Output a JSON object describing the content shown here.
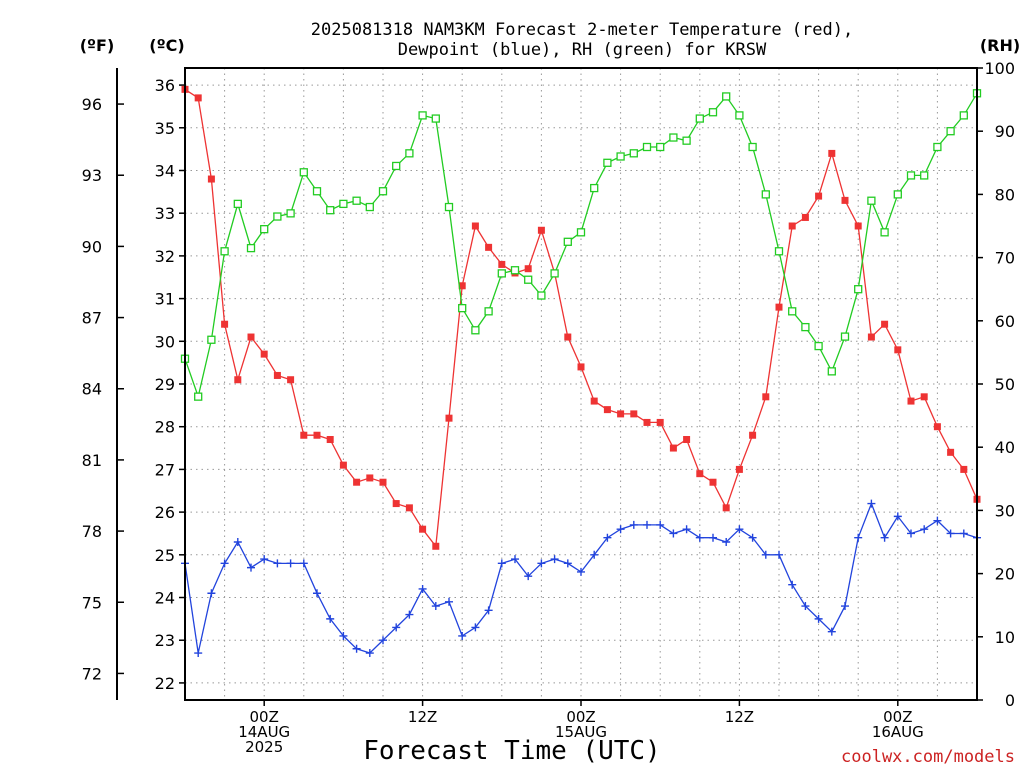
{
  "title_line1": "2025081318 NAM3KM Forecast 2-meter Temperature (red),",
  "title_line2": "Dewpoint (blue), RH (green) for KRSW",
  "unit_f": "(ºF)",
  "unit_c": "(ºC)",
  "unit_rh": "(RH)",
  "xlabel": "Forecast Time (UTC)",
  "credit": "coolwx.com/models",
  "colors": {
    "temperature": "#ee3333",
    "dewpoint": "#2244dd",
    "rh": "#22cc22",
    "credit": "#cc2222",
    "grid": "#999999"
  },
  "chart_data": {
    "type": "line",
    "title": "2025081318 NAM3KM Forecast 2-meter Temperature (red), Dewpoint (blue), RH (green) for KRSW",
    "xlabel": "Forecast Time (UTC)",
    "x_unit": "hours since 2025-08-13 18Z",
    "xlim": [
      0,
      60
    ],
    "x_ticks": [
      {
        "hour": 6,
        "labels": [
          "00Z",
          "14AUG",
          "2025"
        ]
      },
      {
        "hour": 18,
        "labels": [
          "12Z"
        ]
      },
      {
        "hour": 30,
        "labels": [
          "00Z",
          "15AUG"
        ]
      },
      {
        "hour": 42,
        "labels": [
          "12Z"
        ]
      },
      {
        "hour": 54,
        "labels": [
          "00Z",
          "16AUG"
        ]
      }
    ],
    "left_axis_c": {
      "label": "(ºC)",
      "ylim": [
        21.6,
        36.4
      ],
      "ticks": [
        22,
        23,
        24,
        25,
        26,
        27,
        28,
        29,
        30,
        31,
        32,
        33,
        34,
        35,
        36
      ]
    },
    "left_axis_f": {
      "label": "(ºF)",
      "ticks": [
        72,
        75,
        78,
        81,
        84,
        87,
        90,
        93,
        96
      ]
    },
    "right_axis_rh": {
      "label": "(RH)",
      "ylim": [
        0,
        100
      ],
      "ticks": [
        0,
        10,
        20,
        30,
        40,
        50,
        60,
        70,
        80,
        90,
        100
      ]
    },
    "grid": true,
    "series": [
      {
        "name": "Temperature",
        "axis": "c",
        "marker": "filled-square",
        "values": [
          35.9,
          35.7,
          33.8,
          30.4,
          29.1,
          30.1,
          29.7,
          29.2,
          29.1,
          27.8,
          27.8,
          27.7,
          27.1,
          26.7,
          26.8,
          26.7,
          26.2,
          26.1,
          25.6,
          25.2,
          28.2,
          31.3,
          32.7,
          32.2,
          31.8,
          31.6,
          31.7,
          32.6,
          31.6,
          30.1,
          29.4,
          28.6,
          28.4,
          28.3,
          28.3,
          28.1,
          28.1,
          27.5,
          27.7,
          26.9,
          26.7,
          26.1,
          27.0,
          27.8,
          28.7,
          30.8,
          32.7,
          32.9,
          33.4,
          34.4,
          33.3,
          32.7,
          30.1,
          30.4,
          29.8,
          28.6,
          28.7,
          28.0,
          27.4,
          27.0,
          26.3
        ]
      },
      {
        "name": "Dewpoint",
        "axis": "c",
        "marker": "plus",
        "values": [
          24.8,
          22.7,
          24.1,
          24.8,
          25.3,
          24.7,
          24.9,
          24.8,
          24.8,
          24.8,
          24.1,
          23.5,
          23.1,
          22.8,
          22.7,
          23.0,
          23.3,
          23.6,
          24.2,
          23.8,
          23.9,
          23.1,
          23.3,
          23.7,
          24.8,
          24.9,
          24.5,
          24.8,
          24.9,
          24.8,
          24.6,
          25.0,
          25.4,
          25.6,
          25.7,
          25.7,
          25.7,
          25.5,
          25.6,
          25.4,
          25.4,
          25.3,
          25.6,
          25.4,
          25.0,
          25.0,
          24.3,
          23.8,
          23.5,
          23.2,
          23.8,
          25.4,
          26.2,
          25.4,
          25.9,
          25.5,
          25.6,
          25.8,
          25.5,
          25.5,
          25.4
        ]
      },
      {
        "name": "RH",
        "axis": "rh",
        "marker": "open-square",
        "values": [
          54.0,
          48.0,
          57.0,
          71.0,
          78.5,
          71.5,
          74.5,
          76.5,
          77.0,
          83.5,
          80.5,
          77.5,
          78.5,
          79.0,
          78.0,
          80.5,
          84.5,
          86.5,
          92.5,
          92.0,
          78.0,
          62.0,
          58.5,
          61.5,
          67.5,
          68.0,
          66.5,
          64.0,
          67.5,
          72.5,
          74.0,
          81.0,
          85.0,
          86.0,
          86.5,
          87.5,
          87.5,
          89.0,
          88.5,
          92.0,
          93.0,
          95.5,
          92.5,
          87.5,
          80.0,
          71.0,
          61.5,
          59.0,
          56.0,
          52.0,
          57.5,
          65.0,
          79.0,
          74.0,
          80.0,
          83.0,
          83.0,
          87.5,
          90.0,
          92.5,
          96.0
        ]
      }
    ]
  }
}
